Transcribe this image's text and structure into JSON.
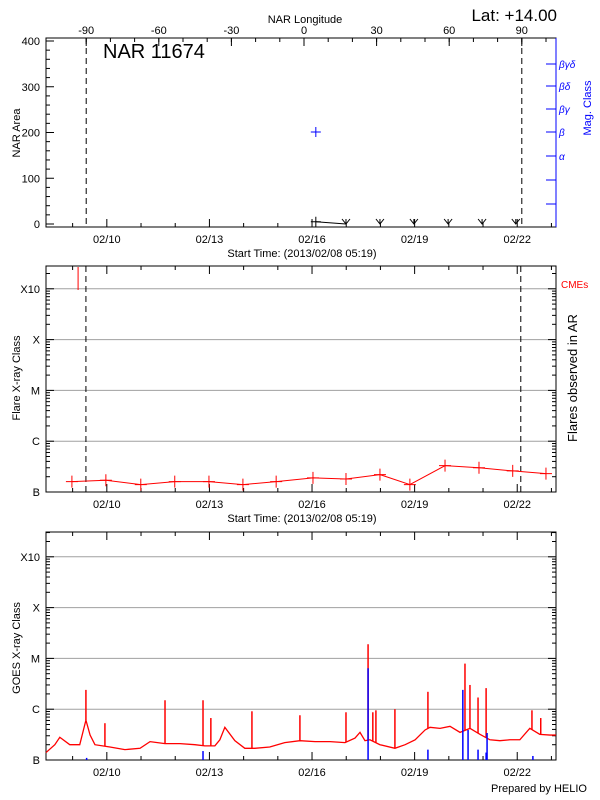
{
  "header": {
    "latitude": "Lat: +14.00",
    "footer": "Prepared by HELIO"
  },
  "colors": {
    "axis": "#000000",
    "mag_class": "#0000ff",
    "flare": "#ff0000",
    "goes_flux": "#ff0000",
    "goes_flares": "#0000ff",
    "grid": "#a0a0a0"
  },
  "chart_data": [
    {
      "type": "scatter",
      "title": "NAR 11674",
      "xlabel": "Start Time: (2013/02/08 05:19)",
      "x2label": "NAR Longitude",
      "ylabel": "NAR Area",
      "y2label": "Mag. Class",
      "xlim": [
        "2013-02-08T05:19",
        "2013-02-23T03:10"
      ],
      "xticks": [
        "02/10",
        "02/13",
        "02/16",
        "02/19",
        "02/22"
      ],
      "x2ticks": [
        "-90",
        "-60",
        "-30",
        "0",
        "30",
        "60",
        "90"
      ],
      "x2lim": [
        -90,
        90
      ],
      "ylim": [
        0,
        400
      ],
      "yticks": [
        "0",
        "100",
        "200",
        "300",
        "400"
      ],
      "y2ticks": [
        "α",
        "β",
        "βγ",
        "βδ",
        "βγδ"
      ],
      "limb_longitudes": [
        -90,
        90
      ],
      "area_points": [
        {
          "time": "2013-02-16T02:40",
          "area": 5
        }
      ],
      "area_zero_markers": [
        "2013-02-16T23:50",
        "2013-02-17T23:40",
        "2013-02-18T23:30",
        "2013-02-19T23:30",
        "2013-02-20T23:20",
        "2013-02-21T23:00"
      ],
      "mag_class_points": [
        {
          "time": "2013-02-16T02:40",
          "class": "β"
        }
      ]
    },
    {
      "type": "line",
      "xlabel": "Start Time: (2013/02/08 05:19)",
      "ylabel": "Flare X-ray Class",
      "y2label": "Flares observed in AR",
      "cme_label": "CMEs",
      "xticks": [
        "02/10",
        "02/13",
        "02/16",
        "02/19",
        "02/22"
      ],
      "yticks": [
        "B",
        "C",
        "M",
        "X",
        "X10"
      ],
      "ylim": [
        "B1.0",
        "X20"
      ],
      "yscale": "log",
      "grid": true,
      "limb_times": [
        "2013-02-09T09:20",
        "2013-02-22T02:30"
      ],
      "cmes": [
        "2013-02-09T03:50"
      ],
      "flares": [
        {
          "time": "2013-02-08T23:30",
          "class": "B1.6"
        },
        {
          "time": "2013-02-09T23:20",
          "class": "B1.7"
        },
        {
          "time": "2013-02-10T23:50",
          "class": "B1.4"
        },
        {
          "time": "2013-02-11T23:40",
          "class": "B1.6"
        },
        {
          "time": "2013-02-12T23:40",
          "class": "B1.6"
        },
        {
          "time": "2013-02-13T23:30",
          "class": "B1.4"
        },
        {
          "time": "2013-02-14T22:50",
          "class": "B1.6"
        },
        {
          "time": "2013-02-16T00:40",
          "class": "B1.9"
        },
        {
          "time": "2013-02-16T23:50",
          "class": "B1.8"
        },
        {
          "time": "2013-02-17T23:40",
          "class": "B2.2"
        },
        {
          "time": "2013-02-18T20:40",
          "class": "B1.4"
        },
        {
          "time": "2013-02-19T21:20",
          "class": "B3.3"
        },
        {
          "time": "2013-02-20T21:10",
          "class": "B3.0"
        },
        {
          "time": "2013-02-21T20:50",
          "class": "B2.6"
        },
        {
          "time": "2013-02-22T20:10",
          "class": "B2.3"
        }
      ]
    },
    {
      "type": "line",
      "ylabel": "GOES X-ray Class",
      "xticks": [
        "02/10",
        "02/13",
        "02/16",
        "02/19",
        "02/22"
      ],
      "yticks": [
        "B",
        "C",
        "M",
        "X",
        "X10"
      ],
      "yscale": "log",
      "grid": true,
      "flux_background": [
        [
          "2013-02-08T05:19",
          "B1.4"
        ],
        [
          "2013-02-08T11:30",
          "B2.0"
        ],
        [
          "2013-02-08T15:00",
          "B2.8"
        ],
        [
          "2013-02-08T22:00",
          "B2.0"
        ],
        [
          "2013-02-09T05:00",
          "B2.0"
        ],
        [
          "2013-02-09T09:20",
          "B6.1"
        ],
        [
          "2013-02-09T12:15",
          "B3.1"
        ],
        [
          "2013-02-09T15:40",
          "B2.0"
        ],
        [
          "2013-02-10T02:10",
          "B1.8"
        ],
        [
          "2013-02-10T12:40",
          "B1.6"
        ],
        [
          "2013-02-10T23:20",
          "B1.7"
        ],
        [
          "2013-02-11T06:20",
          "B2.3"
        ],
        [
          "2013-02-11T16:50",
          "B2.1"
        ],
        [
          "2013-02-12T03:20",
          "B2.1"
        ],
        [
          "2013-02-12T13:50",
          "B2.0"
        ],
        [
          "2013-02-12T20:50",
          "B1.9"
        ],
        [
          "2013-02-13T03:50",
          "B1.9"
        ],
        [
          "2013-02-13T07:20",
          "B2.5"
        ],
        [
          "2013-02-13T10:50",
          "B4.4"
        ],
        [
          "2013-02-13T17:50",
          "B2.4"
        ],
        [
          "2013-02-14T00:50",
          "B1.7"
        ],
        [
          "2013-02-14T07:50",
          "B1.7"
        ],
        [
          "2013-02-14T18:20",
          "B1.8"
        ],
        [
          "2013-02-15T04:50",
          "B2.2"
        ],
        [
          "2013-02-15T15:30",
          "B2.4"
        ],
        [
          "2013-02-16T02:10",
          "B2.3"
        ],
        [
          "2013-02-16T12:40",
          "B2.3"
        ],
        [
          "2013-02-16T23:10",
          "B2.2"
        ],
        [
          "2013-02-17T06:10",
          "B2.7"
        ],
        [
          "2013-02-17T09:40",
          "B3.5"
        ],
        [
          "2013-02-17T13:10",
          "B2.4"
        ],
        [
          "2013-02-17T16:40",
          "B2.5"
        ],
        [
          "2013-02-17T23:40",
          "B2.0"
        ],
        [
          "2013-02-18T10:10",
          "B1.7"
        ],
        [
          "2013-02-18T17:20",
          "B2.0"
        ],
        [
          "2013-02-19T00:20",
          "B2.5"
        ],
        [
          "2013-02-19T07:20",
          "B3.9"
        ],
        [
          "2013-02-19T10:50",
          "B4.4"
        ],
        [
          "2013-02-19T17:50",
          "B4.2"
        ],
        [
          "2013-02-20T00:50",
          "B4.6"
        ],
        [
          "2013-02-20T07:50",
          "B3.5"
        ],
        [
          "2013-02-20T14:50",
          "B4.2"
        ],
        [
          "2013-02-20T21:50",
          "B3.2"
        ],
        [
          "2013-02-21T04:50",
          "B2.5"
        ],
        [
          "2013-02-21T11:50",
          "B2.4"
        ],
        [
          "2013-02-21T18:50",
          "B2.5"
        ],
        [
          "2013-02-22T01:50",
          "B2.5"
        ],
        [
          "2013-02-22T08:50",
          "B4.2"
        ],
        [
          "2013-02-22T15:50",
          "B3.2"
        ],
        [
          "2013-02-22T23:00",
          "B3.1"
        ],
        [
          "2013-02-23T03:10",
          "B3.1"
        ]
      ],
      "flux_spikes": [
        [
          "2013-02-09T09:20",
          "C2.4"
        ],
        [
          "2013-02-09T22:40",
          "B5.3"
        ],
        [
          "2013-02-11T16:50",
          "C1.5"
        ],
        [
          "2013-02-12T19:30",
          "C1.5"
        ],
        [
          "2013-02-13T01:00",
          "B6.7"
        ],
        [
          "2013-02-14T05:50",
          "B9.1"
        ],
        [
          "2013-02-15T15:30",
          "B7.6"
        ],
        [
          "2013-02-16T23:50",
          "B8.7"
        ],
        [
          "2013-02-17T15:20",
          "M1.9"
        ],
        [
          "2013-02-17T18:40",
          "B8.7"
        ],
        [
          "2013-02-17T20:50",
          "B9.5"
        ],
        [
          "2013-02-18T10:10",
          "C1.0"
        ],
        [
          "2013-02-19T09:20",
          "C2.2"
        ],
        [
          "2013-02-20T11:20",
          "C7.9"
        ],
        [
          "2013-02-20T14:50",
          "C3.0"
        ],
        [
          "2013-02-20T20:30",
          "C1.7"
        ],
        [
          "2013-02-21T02:10",
          "C2.6"
        ],
        [
          "2013-02-22T10:20",
          "B9.5"
        ],
        [
          "2013-02-22T16:30",
          "B6.7"
        ]
      ],
      "goes_flares": [
        [
          "2013-02-09T09:50",
          "B1.1"
        ],
        [
          "2013-02-12T19:30",
          "B1.5"
        ],
        [
          "2013-02-17T15:20",
          "C6.4"
        ],
        [
          "2013-02-19T09:20",
          "B1.6"
        ],
        [
          "2013-02-20T09:50",
          "C2.4"
        ],
        [
          "2013-02-20T13:30",
          "B3.9"
        ],
        [
          "2013-02-20T20:30",
          "B1.6"
        ],
        [
          "2013-02-21T02:10",
          "B1.4"
        ],
        [
          "2013-02-21T02:50",
          "B3.4"
        ],
        [
          "2013-02-22T11:00",
          "B1.2"
        ]
      ]
    }
  ]
}
